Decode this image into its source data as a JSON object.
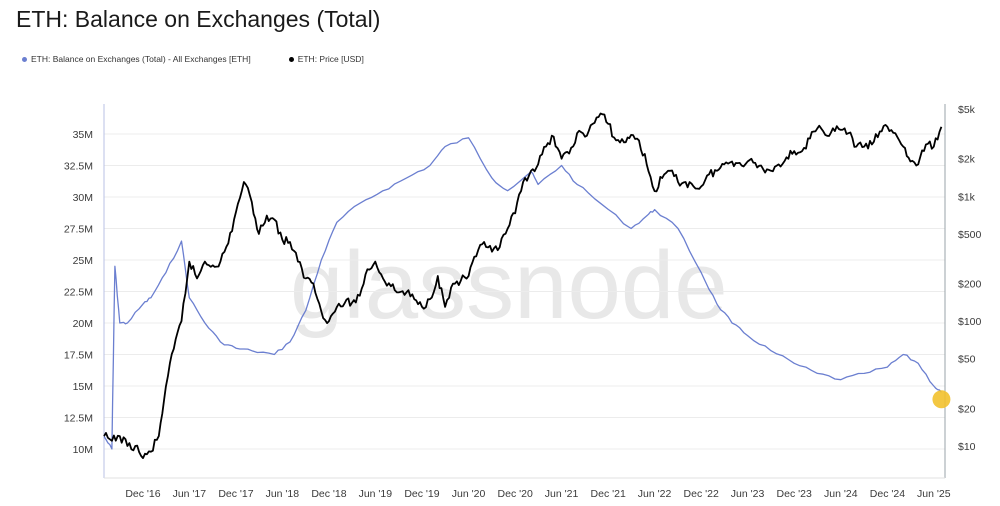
{
  "chart_data": {
    "type": "line",
    "title": "ETH: Balance on Exchanges (Total)",
    "watermark": "glassnode",
    "legend": [
      {
        "label": "ETH: Balance on Exchanges (Total) - All Exchanges [ETH]",
        "color": "#6b7fd0"
      },
      {
        "label": "ETH: Price [USD]",
        "color": "#000000"
      }
    ],
    "x_ticks": [
      "Dec '16",
      "Jun '17",
      "Dec '17",
      "Jun '18",
      "Dec '18",
      "Jun '19",
      "Dec '19",
      "Jun '20",
      "Dec '20",
      "Jun '21",
      "Dec '21",
      "Jun '22",
      "Dec '22",
      "Jun '23",
      "Dec '23",
      "Jun '24",
      "Dec '24",
      "Jun '25"
    ],
    "y_left_ticks": [
      "35M",
      "32.5M",
      "30M",
      "27.5M",
      "25M",
      "22.5M",
      "20M",
      "17.5M",
      "15M",
      "12.5M",
      "10M"
    ],
    "y_right_ticks": [
      "$5k",
      "$2k",
      "$1k",
      "$500",
      "$200",
      "$100",
      "$50",
      "$20",
      "$10"
    ],
    "highlight_color": "#f2c12e",
    "series": [
      {
        "name": "ETH: Balance on Exchanges (Total) - All Exchanges [ETH]",
        "axis": "left",
        "color": "#6b7fd0",
        "unit": "ETH",
        "x": [
          "2016-07",
          "2016-08",
          "2016-08",
          "2016-09",
          "2016-10",
          "2016-12",
          "2017-01",
          "2017-03",
          "2017-05",
          "2017-06",
          "2017-08",
          "2017-10",
          "2017-12",
          "2018-02",
          "2018-05",
          "2018-07",
          "2018-09",
          "2018-11",
          "2019-01",
          "2019-04",
          "2019-07",
          "2019-10",
          "2020-01",
          "2020-03",
          "2020-06",
          "2020-09",
          "2020-11",
          "2021-02",
          "2021-03",
          "2021-06",
          "2021-08",
          "2021-11",
          "2022-03",
          "2022-05",
          "2022-06",
          "2022-09",
          "2022-12",
          "2023-02",
          "2023-04",
          "2023-06",
          "2023-09",
          "2023-12",
          "2024-03",
          "2024-06",
          "2024-09",
          "2024-12",
          "2025-02",
          "2025-04",
          "2025-06",
          "2025-07"
        ],
        "y": [
          11.0,
          10.0,
          24.5,
          20.0,
          20.0,
          21.5,
          22.0,
          24.0,
          26.5,
          22.0,
          20.0,
          18.5,
          18.0,
          17.8,
          17.5,
          18.5,
          21.0,
          25.0,
          28.0,
          29.5,
          30.5,
          31.5,
          32.5,
          34.0,
          34.7,
          31.5,
          30.5,
          32.0,
          31.0,
          32.5,
          31.0,
          29.5,
          27.5,
          28.5,
          29.0,
          27.5,
          24.0,
          21.5,
          20.0,
          19.0,
          17.8,
          16.8,
          16.0,
          15.5,
          16.0,
          16.5,
          17.5,
          16.8,
          15.0,
          14.5
        ]
      },
      {
        "name": "ETH: Price [USD]",
        "axis": "right",
        "color": "#000000",
        "unit": "USD",
        "scale": "log",
        "x": [
          "2016-07",
          "2016-08",
          "2016-09",
          "2016-10",
          "2016-11",
          "2016-12",
          "2017-01",
          "2017-02",
          "2017-03",
          "2017-04",
          "2017-05",
          "2017-06",
          "2017-07",
          "2017-08",
          "2017-09",
          "2017-10",
          "2017-11",
          "2017-12",
          "2018-01",
          "2018-02",
          "2018-03",
          "2018-04",
          "2018-05",
          "2018-06",
          "2018-07",
          "2018-08",
          "2018-09",
          "2018-10",
          "2018-11",
          "2018-12",
          "2019-01",
          "2019-02",
          "2019-03",
          "2019-04",
          "2019-05",
          "2019-06",
          "2019-07",
          "2019-08",
          "2019-09",
          "2019-10",
          "2019-11",
          "2019-12",
          "2020-01",
          "2020-02",
          "2020-03",
          "2020-04",
          "2020-05",
          "2020-06",
          "2020-07",
          "2020-08",
          "2020-09",
          "2020-10",
          "2020-11",
          "2020-12",
          "2021-01",
          "2021-02",
          "2021-03",
          "2021-04",
          "2021-05",
          "2021-06",
          "2021-07",
          "2021-08",
          "2021-09",
          "2021-10",
          "2021-11",
          "2021-12",
          "2022-01",
          "2022-02",
          "2022-03",
          "2022-04",
          "2022-05",
          "2022-06",
          "2022-07",
          "2022-08",
          "2022-09",
          "2022-10",
          "2022-11",
          "2022-12",
          "2023-01",
          "2023-02",
          "2023-03",
          "2023-04",
          "2023-05",
          "2023-06",
          "2023-07",
          "2023-08",
          "2023-09",
          "2023-10",
          "2023-11",
          "2023-12",
          "2024-01",
          "2024-02",
          "2024-03",
          "2024-04",
          "2024-05",
          "2024-06",
          "2024-07",
          "2024-08",
          "2024-09",
          "2024-10",
          "2024-11",
          "2024-12",
          "2025-01",
          "2025-02",
          "2025-03",
          "2025-04",
          "2025-05",
          "2025-06",
          "2025-07"
        ],
        "y": [
          12,
          11,
          12,
          10,
          10,
          8,
          9,
          12,
          30,
          60,
          100,
          300,
          220,
          300,
          280,
          300,
          420,
          750,
          1300,
          900,
          500,
          700,
          650,
          450,
          430,
          300,
          220,
          200,
          120,
          100,
          130,
          140,
          140,
          160,
          260,
          300,
          220,
          190,
          170,
          170,
          150,
          130,
          150,
          230,
          130,
          200,
          210,
          230,
          330,
          430,
          360,
          390,
          550,
          730,
          1300,
          1600,
          1800,
          2500,
          3000,
          2000,
          2200,
          3200,
          3000,
          3800,
          4600,
          3800,
          2800,
          2700,
          3100,
          2800,
          1800,
          1100,
          1400,
          1600,
          1300,
          1300,
          1200,
          1200,
          1500,
          1600,
          1800,
          1900,
          1850,
          1900,
          1850,
          1650,
          1600,
          1800,
          2050,
          2300,
          2300,
          2900,
          3500,
          3100,
          3500,
          3400,
          3200,
          2500,
          2500,
          2600,
          3300,
          3600,
          3200,
          2500,
          1900,
          1800,
          2600,
          2500,
          3600
        ]
      }
    ]
  }
}
